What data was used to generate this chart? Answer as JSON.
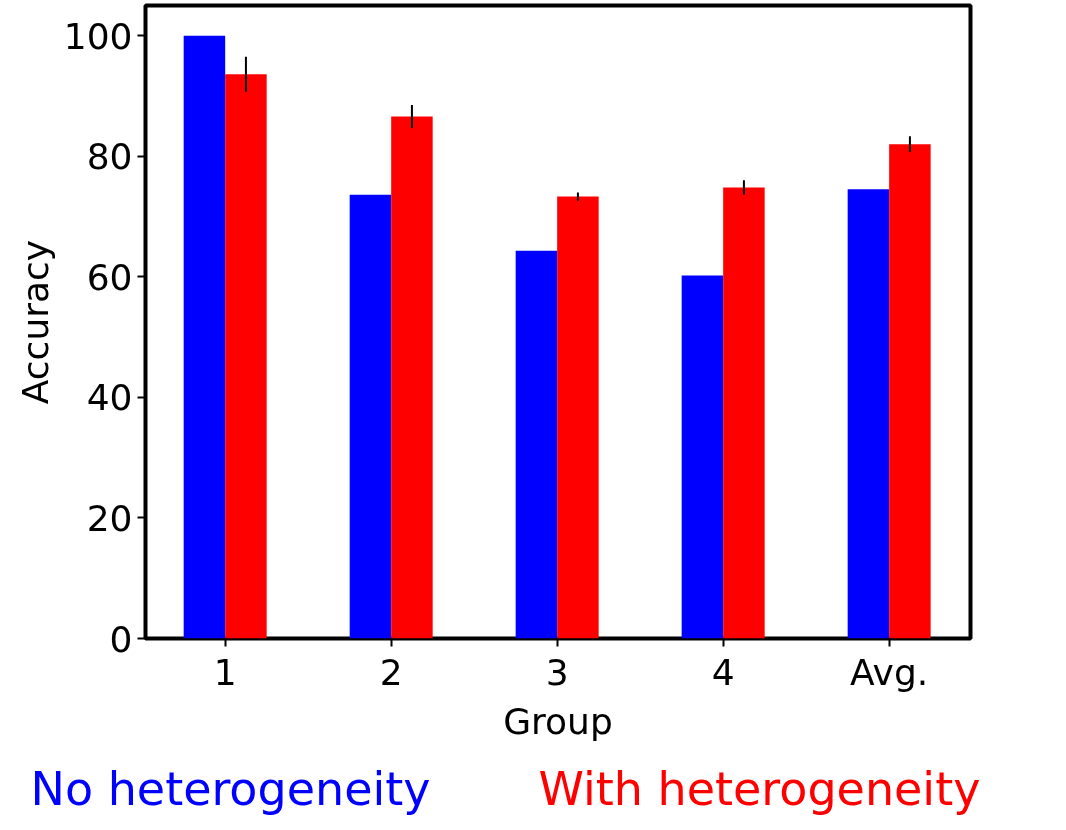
{
  "chart_data": {
    "type": "bar",
    "xlabel": "Group",
    "ylabel": "Accuracy",
    "categories": [
      "1",
      "2",
      "3",
      "4",
      "Avg."
    ],
    "series": [
      {
        "name": "No heterogeneity",
        "color": "#0000ff",
        "values": [
          100,
          73.6,
          64.3,
          60.2,
          74.5
        ]
      },
      {
        "name": "With heterogeneity",
        "color": "#ff0000",
        "values": [
          93.6,
          86.6,
          73.3,
          74.8,
          82.0
        ],
        "errors": [
          2.9,
          1.9,
          0.7,
          1.2,
          1.3
        ]
      }
    ],
    "ylim": [
      0,
      105
    ],
    "yticks": [
      0,
      20,
      40,
      60,
      80,
      100
    ],
    "grid": false
  }
}
